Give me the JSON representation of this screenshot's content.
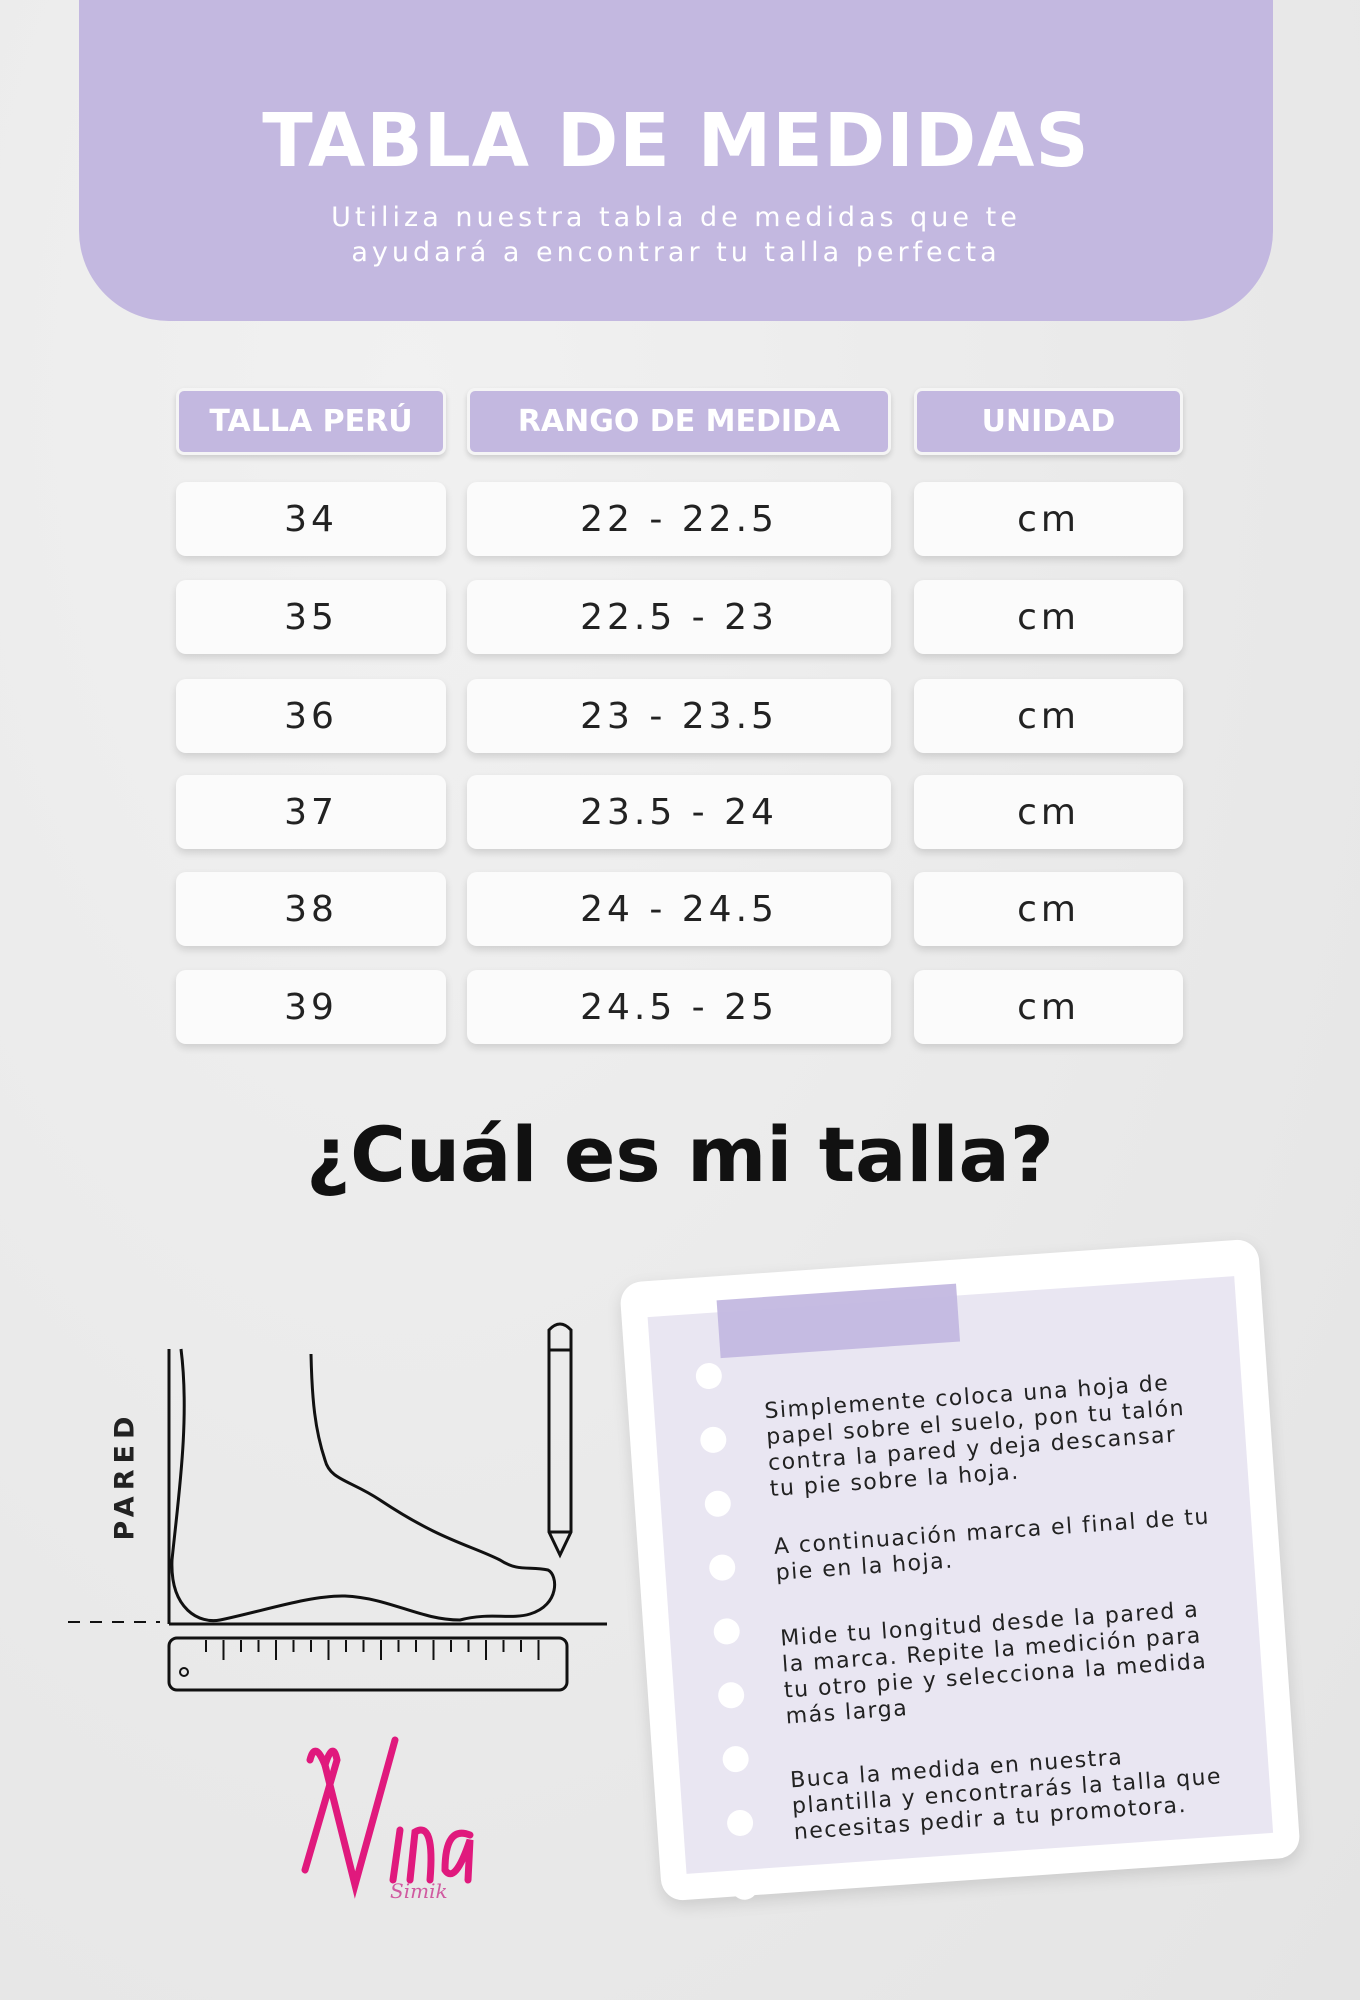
{
  "header": {
    "title": "TABLA DE MEDIDAS",
    "subtitle_line1": "Utiliza nuestra tabla de medidas que te",
    "subtitle_line2": "ayudará a encontrar tu talla perfecta"
  },
  "table": {
    "columns": [
      "TALLA PERÚ",
      "RANGO DE MEDIDA",
      "UNIDAD"
    ],
    "rows": [
      [
        "34",
        "22 - 22.5",
        "cm"
      ],
      [
        "35",
        "22.5 - 23",
        "cm"
      ],
      [
        "36",
        "23 - 23.5",
        "cm"
      ],
      [
        "37",
        "23.5 - 24",
        "cm"
      ],
      [
        "38",
        "24 - 24.5",
        "cm"
      ],
      [
        "39",
        "24.5 - 25",
        "cm"
      ]
    ]
  },
  "question": "¿Cuál es mi talla?",
  "diagram": {
    "wall_label": "PARED"
  },
  "instructions": [
    "Simplemente coloca una hoja de papel sobre el suelo, pon tu talón contra la pared y deja descansar tu pie sobre la hoja.",
    "A continuación marca el final de tu pie en la hoja.",
    "Mide tu longitud desde la pared a la marca. Repite la medición para tu otro pie y selecciona la medida más larga",
    "Buca la medida en nuestra plantilla y encontrarás la talla que necesitas pedir a tu promotora."
  ],
  "logo": {
    "name": "Nina",
    "sub": "Simik"
  },
  "colors": {
    "accent": "#c3b8e0",
    "logo": "#e0197d",
    "background": "#ececec"
  }
}
